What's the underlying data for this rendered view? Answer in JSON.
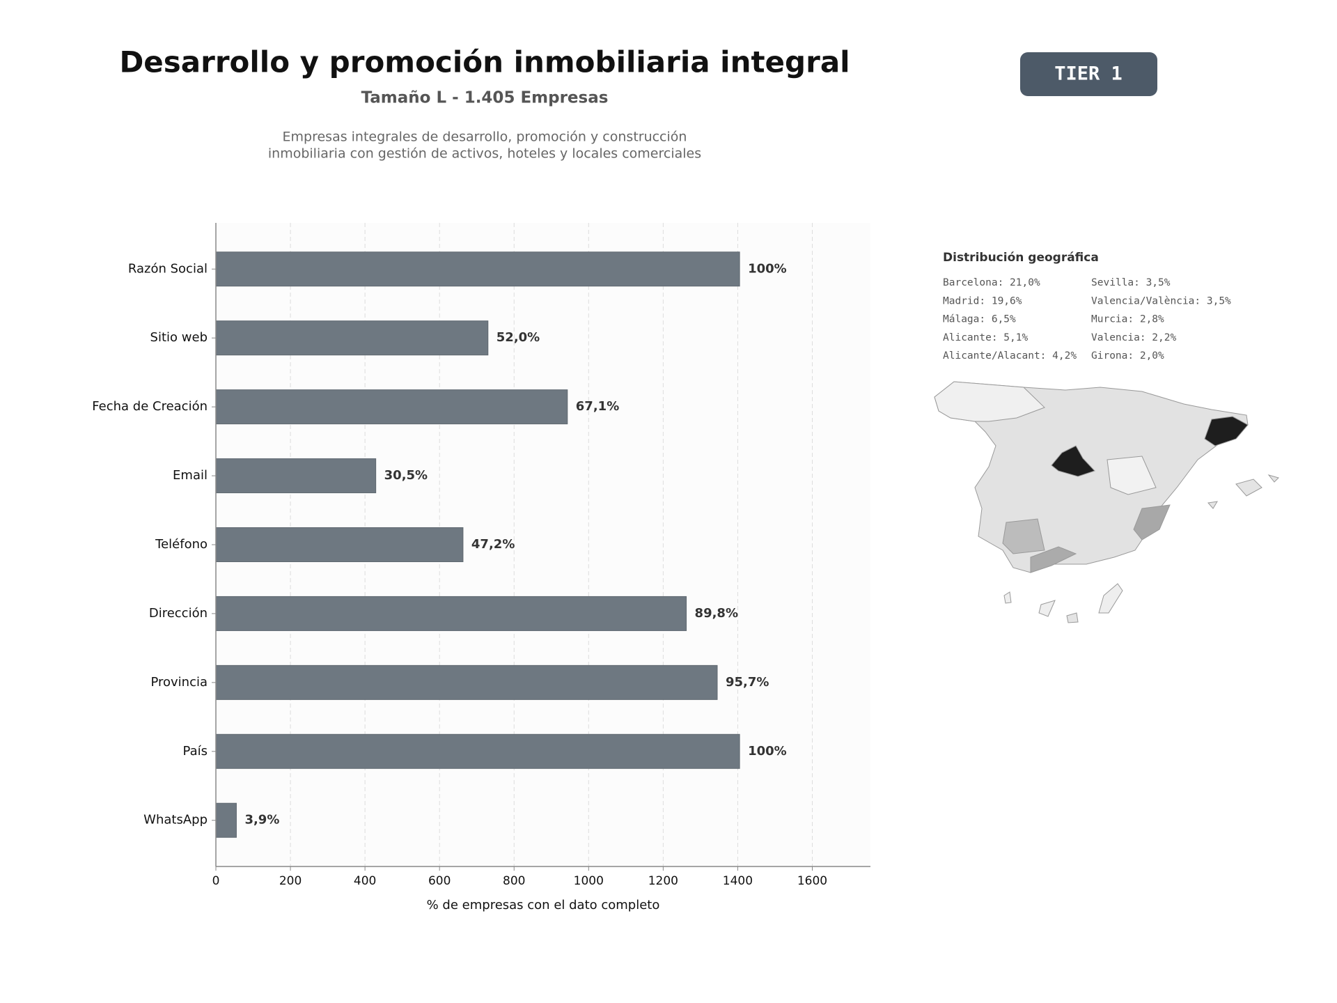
{
  "header": {
    "title": "Desarrollo y promoción inmobiliaria integral",
    "subtitle": "Tamaño L - 1.405 Empresas",
    "description": [
      "Empresas integrales de desarrollo, promoción y construcción",
      "inmobiliaria con gestión de activos, hoteles y locales comerciales"
    ],
    "badge": "TIER 1"
  },
  "chart_data": {
    "type": "barh",
    "x_label": "% de empresas con el dato completo",
    "categories": [
      "Razón Social",
      "Sitio web",
      "Fecha de Creación",
      "Email",
      "Teléfono",
      "Dirección",
      "Provincia",
      "País",
      "WhatsApp"
    ],
    "values": [
      1405,
      730,
      943,
      429,
      663,
      1262,
      1345,
      1405,
      55
    ],
    "value_labels": [
      "100%",
      "52,0%",
      "67,1%",
      "30,5%",
      "47,2%",
      "89,8%",
      "95,7%",
      "100%",
      "3,9%"
    ],
    "color": "#6e7881",
    "xlim": [
      0,
      1756
    ],
    "xticks": [
      0,
      200,
      400,
      600,
      800,
      1000,
      1200,
      1400,
      1600
    ],
    "grid": true
  },
  "geo": {
    "title": "Distribución geográfica",
    "items": [
      "Barcelona: 21,0%",
      "Madrid: 19,6%",
      "Málaga: 6,5%",
      "Alicante: 5,1%",
      "Alicante/Alacant: 4,2%",
      "Sevilla: 3,5%",
      "Valencia/València: 3,5%",
      "Murcia: 2,8%",
      "Valencia: 2,2%",
      "Girona: 2,0%"
    ]
  }
}
